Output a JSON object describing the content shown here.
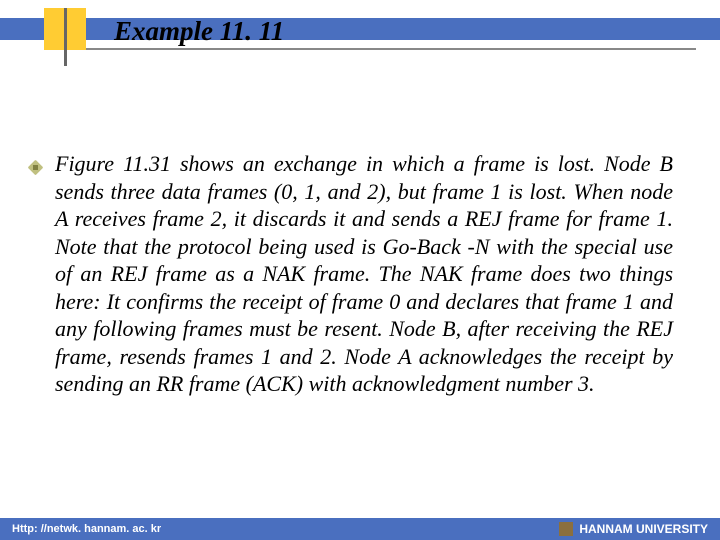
{
  "header": {
    "title": "Example 11. 11",
    "bar_color": "#4a6fbf",
    "accent_color": "#ffcc33"
  },
  "body": {
    "text": "Figure 11.31 shows an exchange in which a frame is lost. Node B sends three data frames (0, 1, and 2), but frame 1 is lost. When node A receives frame 2, it discards it and sends a REJ frame for frame 1. Note that the protocol being used is Go-Back -N with the special use of an REJ frame as a NAK frame. The NAK frame does two things here: It confirms the receipt of frame 0 and declares that frame 1 and any following frames must be resent. Node B, after receiving the REJ frame, resends frames 1 and 2. Node A acknowledges the receipt by sending an RR frame (ACK) with acknowledgment number 3."
  },
  "footer": {
    "left": "Http: //netwk. hannam. ac. kr",
    "right": "HANNAM  UNIVERSITY",
    "bar_color": "#4a6fbf"
  },
  "typography": {
    "title_fontsize": 27,
    "body_fontsize": 22,
    "footer_fontsize": 11,
    "font_family": "Times New Roman",
    "style": "italic"
  },
  "colors": {
    "background": "#ffffff",
    "text": "#000000",
    "footer_text": "#ffffff"
  }
}
